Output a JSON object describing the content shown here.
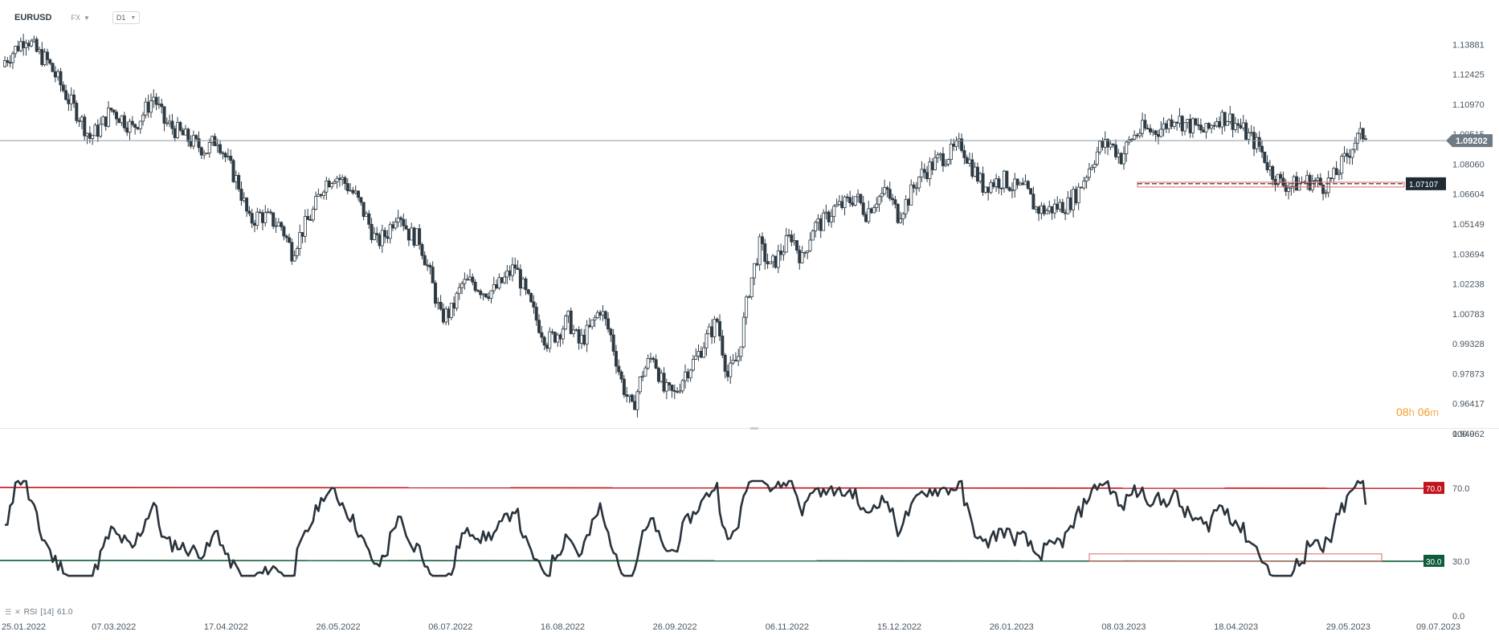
{
  "header": {
    "symbol": "EURUSD",
    "market": "FX",
    "timeframe": "D1"
  },
  "countdown": {
    "hours": "08",
    "hours_unit": "h",
    "minutes": "06",
    "minutes_unit": "m"
  },
  "rsi_legend": {
    "label": "RSI",
    "params": "[14]",
    "value": "61.0"
  },
  "colors": {
    "candle": "#2f3b44",
    "overbought": "#c0141c",
    "oversold": "#0d5c3a",
    "zone": "#e0665f",
    "countdown": "#f39c26"
  },
  "chart_data": [
    {
      "type": "candlestick",
      "symbol": "EURUSD",
      "timeframe": "D1",
      "x_ticks": [
        "25.01.2022",
        "07.03.2022",
        "17.04.2022",
        "26.05.2022",
        "06.07.2022",
        "16.08.2022",
        "26.09.2022",
        "06.11.2022",
        "15.12.2022",
        "26.01.2023",
        "08.03.2023",
        "18.04.2023",
        "29.05.2023",
        "09.07.2023"
      ],
      "y_ticks": [
        "1.13881",
        "1.12425",
        "1.10970",
        "1.09515",
        "1.08060",
        "1.06604",
        "1.05149",
        "1.03694",
        "1.02238",
        "1.00783",
        "0.99328",
        "0.97873",
        "0.96417",
        "0.94962"
      ],
      "ylim": [
        0.94962,
        1.15336
      ],
      "current_price": "1.09202",
      "support_level": "1.07107",
      "support_zone": [
        1.0695,
        1.0718
      ],
      "closes": [
        1.131,
        1.1365,
        1.1428,
        1.135,
        1.1305,
        1.1215,
        1.112,
        1.104,
        1.0935,
        1.0985,
        1.107,
        1.103,
        1.098,
        1.105,
        1.1135,
        1.101,
        1.0975,
        1.0935,
        1.09,
        1.0875,
        1.0935,
        1.081,
        1.0705,
        1.0525,
        1.056,
        1.0535,
        1.0505,
        1.038,
        1.0485,
        1.0575,
        1.071,
        1.0755,
        1.0715,
        1.065,
        1.0545,
        1.042,
        1.0475,
        1.059,
        1.047,
        1.044,
        1.0265,
        1.006,
        1.009,
        1.022,
        1.0235,
        1.019,
        1.019,
        1.0245,
        1.031,
        1.017,
        1.005,
        0.9945,
        0.9985,
        1.005,
        0.9935,
        1.0,
        1.0105,
        0.997,
        0.975,
        0.961,
        0.9795,
        0.988,
        0.9705,
        0.9685,
        0.9795,
        0.986,
        0.996,
        1.0045,
        0.9775,
        0.9875,
        1.02,
        1.041,
        1.03,
        1.038,
        1.046,
        1.034,
        1.05,
        1.0525,
        1.059,
        1.061,
        1.065,
        1.057,
        1.064,
        1.067,
        1.056,
        1.064,
        1.0745,
        1.079,
        1.0835,
        1.086,
        1.09,
        1.079,
        1.07,
        1.072,
        1.073,
        1.069,
        1.068,
        1.059,
        1.058,
        1.06,
        1.061,
        1.068,
        1.079,
        1.089,
        1.0905,
        1.084,
        1.0935,
        1.0975,
        1.0965,
        1.0985,
        1.104,
        1.1,
        1.0985,
        1.096,
        1.103,
        1.1035,
        1.0995,
        1.094,
        1.089,
        1.078,
        1.0715,
        1.07,
        1.072,
        1.0725,
        1.07,
        1.074,
        1.0825,
        1.092,
        1.096
      ]
    },
    {
      "type": "line",
      "name": "RSI [14]",
      "ylim": [
        0,
        100
      ],
      "y_ticks": [
        "100.0",
        "70.0",
        "30.0",
        "0.0"
      ],
      "levels": [
        70,
        30
      ],
      "level_labels": [
        "70.0",
        "30.0"
      ],
      "oversold_zone": [
        30,
        34
      ],
      "last": 61.0
    }
  ]
}
